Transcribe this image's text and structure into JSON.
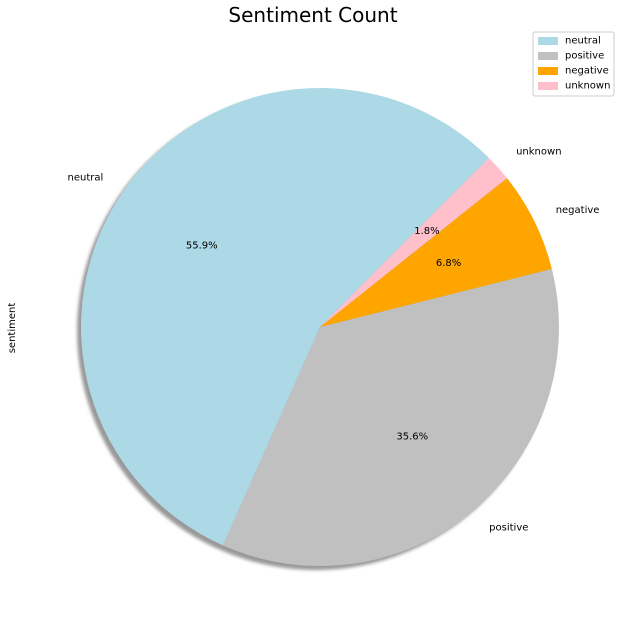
{
  "chart_data": {
    "type": "pie",
    "title": "Sentiment Count",
    "ylabel": "sentiment",
    "categories": [
      "neutral",
      "positive",
      "negative",
      "unknown"
    ],
    "values": [
      55.9,
      35.6,
      6.8,
      1.8
    ],
    "value_labels": [
      "55.9%",
      "35.6%",
      "6.8%",
      "1.8%"
    ],
    "colors": [
      "#add8e6",
      "#c0c0c0",
      "#ffa500",
      "#ffc0cb"
    ],
    "start_angle_deg": 45,
    "direction": "counterclockwise",
    "shadow": true,
    "legend": {
      "placement": "top-right",
      "entries": [
        "neutral",
        "positive",
        "negative",
        "unknown"
      ]
    }
  }
}
